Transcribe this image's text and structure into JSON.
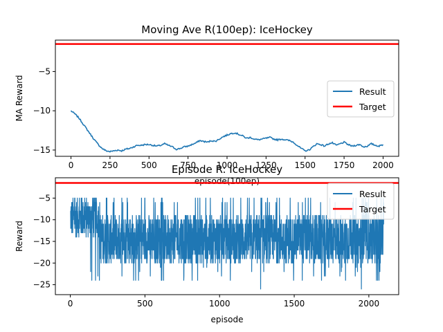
{
  "chart_data": [
    {
      "type": "line",
      "title": "Moving Ave R(100ep): IceHockey",
      "xlabel": "episode(100ep)",
      "ylabel": "MA Reward",
      "xlim": [
        -100,
        2100
      ],
      "ylim": [
        -15.8,
        -1.0
      ],
      "xticks": [
        0,
        250,
        500,
        750,
        1000,
        1250,
        1500,
        1750,
        2000
      ],
      "yticks": [
        -15,
        -10,
        -5
      ],
      "grid": false,
      "legend": "center-right",
      "series": [
        {
          "name": "Result",
          "color": "#1f77b4",
          "x": [
            0,
            25,
            50,
            75,
            100,
            125,
            150,
            175,
            200,
            225,
            250,
            275,
            300,
            325,
            350,
            375,
            400,
            425,
            450,
            475,
            500,
            525,
            550,
            575,
            600,
            625,
            650,
            675,
            700,
            725,
            750,
            775,
            800,
            825,
            850,
            875,
            900,
            925,
            950,
            975,
            1000,
            1025,
            1050,
            1075,
            1100,
            1125,
            1150,
            1175,
            1200,
            1225,
            1250,
            1275,
            1300,
            1325,
            1350,
            1375,
            1400,
            1425,
            1450,
            1475,
            1500,
            1525,
            1550,
            1575,
            1600,
            1625,
            1650,
            1675,
            1700,
            1725,
            1750,
            1775,
            1800,
            1825,
            1850,
            1875,
            1900,
            1925,
            1950,
            1975,
            2000
          ],
          "y": [
            -10.0,
            -10.4,
            -10.9,
            -11.6,
            -12.3,
            -13.0,
            -13.7,
            -14.3,
            -14.8,
            -15.1,
            -15.2,
            -15.1,
            -15.0,
            -15.1,
            -14.9,
            -14.8,
            -14.6,
            -14.4,
            -14.4,
            -14.3,
            -14.3,
            -14.4,
            -14.5,
            -14.4,
            -14.2,
            -14.4,
            -14.6,
            -14.9,
            -14.8,
            -14.6,
            -14.5,
            -14.3,
            -14.1,
            -13.8,
            -13.9,
            -14.0,
            -13.8,
            -13.9,
            -13.6,
            -13.3,
            -13.1,
            -12.9,
            -12.8,
            -13.0,
            -13.2,
            -13.5,
            -13.4,
            -13.6,
            -13.7,
            -13.6,
            -13.5,
            -13.4,
            -13.6,
            -13.7,
            -13.6,
            -13.7,
            -13.8,
            -14.0,
            -14.4,
            -14.8,
            -15.1,
            -15.0,
            -14.6,
            -14.2,
            -14.3,
            -14.5,
            -14.2,
            -14.1,
            -14.4,
            -14.2,
            -14.0,
            -14.3,
            -14.5,
            -14.4,
            -14.3,
            -14.6,
            -14.5,
            -14.2,
            -14.4,
            -14.5,
            -14.3
          ]
        },
        {
          "name": "Target",
          "color": "#ff0000",
          "y_constant": -1.5
        }
      ]
    },
    {
      "type": "line",
      "title": "Episode R: IceHockey",
      "xlabel": "episode",
      "ylabel": "Reward",
      "xlim": [
        -100,
        2200
      ],
      "ylim": [
        -27.3,
        -0.3
      ],
      "xticks": [
        0,
        500,
        1000,
        1500,
        2000
      ],
      "yticks": [
        -25,
        -20,
        -15,
        -10,
        -5
      ],
      "grid": false,
      "legend": "top-right",
      "episodes": 2100,
      "series": [
        {
          "name": "Result",
          "color": "#1f77b4",
          "x_range": [
            0,
            2100
          ],
          "typical_range": [
            -20,
            -5
          ],
          "min": -26,
          "max": -5
        },
        {
          "name": "Target",
          "color": "#ff0000",
          "y_constant": -1.5
        }
      ]
    }
  ],
  "legend_labels": {
    "result": "Result",
    "target": "Target"
  }
}
